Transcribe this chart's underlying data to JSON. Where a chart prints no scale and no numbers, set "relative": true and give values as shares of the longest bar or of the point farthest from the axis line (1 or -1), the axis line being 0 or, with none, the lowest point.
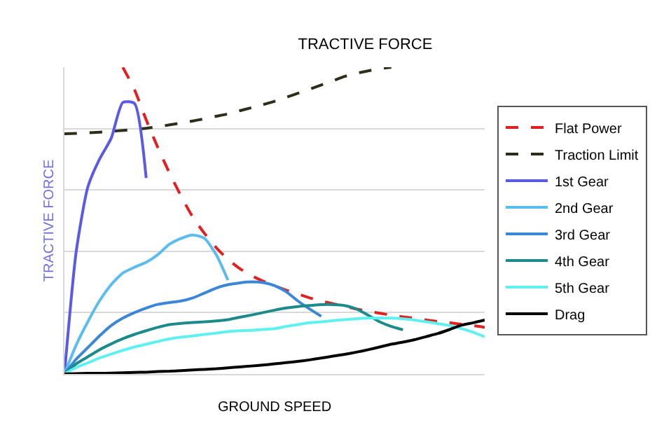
{
  "chart_data": {
    "type": "line",
    "title": "TRACTIVE FORCE",
    "xlabel": "GROUND SPEED",
    "ylabel": "TRACTIVE FORCE",
    "relative": true,
    "grid": "y",
    "legend": "right",
    "marker": "none",
    "categories": [
      null,
      null,
      null,
      null,
      null,
      null,
      null,
      null,
      null,
      null,
      null,
      null,
      null,
      null,
      null,
      null,
      null,
      null,
      null,
      null,
      null,
      null,
      null,
      null,
      null,
      null,
      null,
      null,
      null,
      null,
      null,
      null,
      null,
      null,
      null,
      null,
      null
    ],
    "series": [
      {
        "name": "Flat Power",
        "color": "#e32020",
        "line_style": "dashed",
        "values": [
          null,
          null,
          null,
          null,
          null,
          1.0,
          0.927,
          0.829,
          0.738,
          0.655,
          0.579,
          0.511,
          0.458,
          0.412,
          0.374,
          0.344,
          0.321,
          0.303,
          0.288,
          0.273,
          0.261,
          0.248,
          0.238,
          0.229,
          0.221,
          0.212,
          0.205,
          0.198,
          0.192,
          0.186,
          0.182,
          0.176,
          0.171,
          0.167,
          0.162,
          0.158,
          0.152
        ]
      },
      {
        "name": "Traction Limit",
        "color": "#2d2d1a",
        "line_style": "dashed",
        "values": [
          0.783,
          0.784,
          0.786,
          0.788,
          0.791,
          0.794,
          0.797,
          0.801,
          0.806,
          0.812,
          0.818,
          0.825,
          0.832,
          0.84,
          0.848,
          0.858,
          0.868,
          0.878,
          0.889,
          0.902,
          0.915,
          0.928,
          0.942,
          0.956,
          0.97,
          0.98,
          0.988,
          0.995,
          1.0,
          null,
          null,
          null,
          null,
          null,
          null,
          null,
          null
        ]
      },
      {
        "name": "1st Gear",
        "color": "#5a5ae6",
        "line_style": "solid",
        "values": [
          0,
          0.397,
          0.609,
          0.7,
          0.768,
          0.885,
          0.882,
          0.639,
          null,
          null,
          null,
          null,
          null,
          null,
          null,
          null,
          null,
          null,
          null,
          null,
          null,
          null,
          null,
          null,
          null,
          null,
          null,
          null,
          null,
          null,
          null,
          null,
          null,
          null,
          null,
          null,
          null
        ]
      },
      {
        "name": "2nd Gear",
        "color": "#5bbcf0",
        "line_style": "solid",
        "values": [
          0,
          0.094,
          0.17,
          0.238,
          0.291,
          0.329,
          0.348,
          0.364,
          0.389,
          0.423,
          0.442,
          0.453,
          0.442,
          0.389,
          0.306,
          null,
          null,
          null,
          null,
          null,
          null,
          null,
          null,
          null,
          null,
          null,
          null,
          null,
          null,
          null,
          null,
          null,
          null,
          null,
          null,
          null,
          null
        ]
      },
      {
        "name": "3rd Gear",
        "color": "#3a86d8",
        "line_style": "solid",
        "values": [
          0,
          0.048,
          0.086,
          0.124,
          0.158,
          0.182,
          0.2,
          0.215,
          0.227,
          0.233,
          0.238,
          0.248,
          0.264,
          0.28,
          0.291,
          0.297,
          0.3,
          0.298,
          0.288,
          0.268,
          0.238,
          0.212,
          0.188,
          null,
          null,
          null,
          null,
          null,
          null,
          null,
          null,
          null,
          null,
          null,
          null,
          null,
          null
        ]
      },
      {
        "name": "4th Gear",
        "color": "#1a8a8a",
        "line_style": "solid",
        "values": [
          0,
          0.033,
          0.056,
          0.079,
          0.098,
          0.115,
          0.129,
          0.141,
          0.152,
          0.161,
          0.165,
          0.168,
          0.17,
          0.173,
          0.177,
          0.185,
          0.192,
          0.2,
          0.208,
          0.215,
          0.22,
          0.223,
          0.226,
          0.226,
          0.223,
          0.212,
          0.192,
          0.17,
          0.155,
          0.144,
          null,
          null,
          null,
          null,
          null,
          null,
          null
        ]
      },
      {
        "name": "5th Gear",
        "color": "#5ff0f0",
        "line_style": "solid",
        "values": [
          0,
          0.021,
          0.036,
          0.052,
          0.065,
          0.077,
          0.088,
          0.097,
          0.106,
          0.114,
          0.12,
          0.124,
          0.129,
          0.133,
          0.138,
          0.141,
          0.142,
          0.145,
          0.148,
          0.155,
          0.161,
          0.167,
          0.17,
          0.174,
          0.177,
          0.18,
          0.182,
          0.182,
          0.182,
          0.18,
          0.176,
          0.17,
          0.164,
          0.158,
          0.148,
          0.136,
          0.121
        ]
      },
      {
        "name": "Drag",
        "color": "#000000",
        "line_style": "solid",
        "values": [
          0,
          0.001,
          0.002,
          0.002,
          0.003,
          0.004,
          0.005,
          0.006,
          0.008,
          0.009,
          0.011,
          0.013,
          0.015,
          0.017,
          0.02,
          0.023,
          0.026,
          0.029,
          0.033,
          0.037,
          0.041,
          0.046,
          0.052,
          0.058,
          0.064,
          0.071,
          0.079,
          0.088,
          0.097,
          0.104,
          0.112,
          0.122,
          0.132,
          0.145,
          0.159,
          0.167,
          0.176
        ]
      }
    ]
  }
}
